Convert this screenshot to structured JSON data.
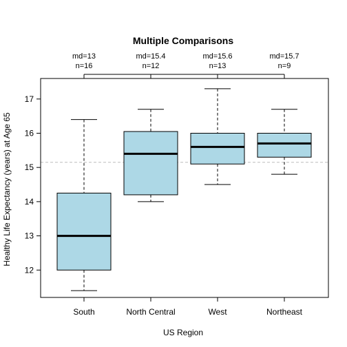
{
  "chart_data": {
    "type": "box",
    "title": "Multiple Comparisons",
    "xlabel": "US Region",
    "ylabel": "Healthy Life Expectancy (years) at Age 65",
    "ylim": [
      11.2,
      17.6
    ],
    "yticks": [
      12,
      13,
      14,
      15,
      16,
      17
    ],
    "reference_line": 15.15,
    "box_fill": "#add8e6",
    "reference_line_color": "#bebebe",
    "categories": [
      "South",
      "North Central",
      "West",
      "Northeast"
    ],
    "boxes": [
      {
        "category": "South",
        "whisker_low": 11.4,
        "q1": 12.0,
        "median": 13.0,
        "q3": 14.25,
        "whisker_high": 16.4,
        "stat_label": "md=13",
        "n_label": "n=16"
      },
      {
        "category": "North Central",
        "whisker_low": 14.0,
        "q1": 14.2,
        "median": 15.4,
        "q3": 16.05,
        "whisker_high": 16.7,
        "stat_label": "md=15.4",
        "n_label": "n=12"
      },
      {
        "category": "West",
        "whisker_low": 14.5,
        "q1": 15.1,
        "median": 15.6,
        "q3": 16.0,
        "whisker_high": 17.3,
        "stat_label": "md=15.6",
        "n_label": "n=13"
      },
      {
        "category": "Northeast",
        "whisker_low": 14.8,
        "q1": 15.3,
        "median": 15.7,
        "q3": 16.0,
        "whisker_high": 16.7,
        "stat_label": "md=15.7",
        "n_label": "n=9"
      }
    ]
  }
}
